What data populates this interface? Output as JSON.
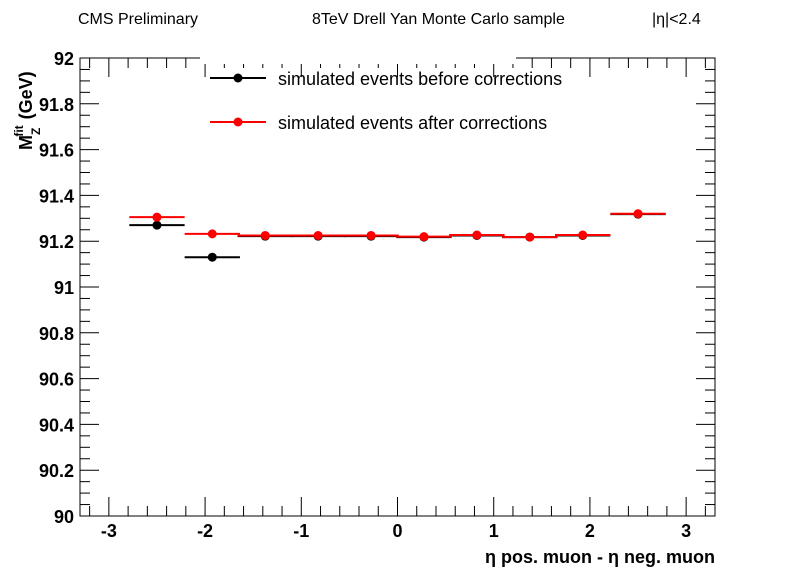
{
  "header": {
    "left": "CMS Preliminary",
    "center": "8TeV Drell Yan Monte Carlo sample",
    "right": "|η|<2.4"
  },
  "chart_data": {
    "type": "scatter",
    "title": "",
    "xlabel": "η pos. muon -  η neg. muon",
    "ylabel": {
      "main": "M",
      "superscript": "fit",
      "subscript": "Z",
      "unit": "(GeV)"
    },
    "xlim": [
      -3.3,
      3.3
    ],
    "ylim": [
      90,
      92
    ],
    "x_ticks": [
      -3,
      -2,
      -1,
      0,
      1,
      2,
      3
    ],
    "x_tick_labels": [
      "-3",
      "-2",
      "-1",
      "0",
      "1",
      "2",
      "3"
    ],
    "y_ticks": [
      90,
      90.2,
      90.4,
      90.6,
      90.8,
      91,
      91.2,
      91.4,
      91.6,
      91.8,
      92
    ],
    "y_tick_labels": [
      "90",
      "90.2",
      "90.4",
      "90.6",
      "90.8",
      "91",
      "91.2",
      "91.4",
      "91.6",
      "91.8",
      "92"
    ],
    "grid": false,
    "legend_position": "top",
    "series": [
      {
        "name": "simulated events before corrections",
        "color": "#000000",
        "bin_halfwidth": 0.2875,
        "x": [
          -2.5,
          -1.925,
          -1.375,
          -0.825,
          -0.275,
          0.275,
          0.825,
          1.375,
          1.925,
          2.5
        ],
        "y": [
          91.27,
          91.13,
          91.222,
          91.222,
          91.222,
          91.218,
          91.225,
          91.218,
          91.225,
          91.318
        ]
      },
      {
        "name": "simulated events after corrections",
        "color": "#ff0000",
        "bin_halfwidth": 0.2875,
        "x": [
          -2.5,
          -1.925,
          -1.375,
          -0.825,
          -0.275,
          0.275,
          0.825,
          1.375,
          1.925,
          2.5
        ],
        "y": [
          91.305,
          91.232,
          91.225,
          91.225,
          91.225,
          91.22,
          91.227,
          91.218,
          91.227,
          91.32
        ]
      }
    ]
  }
}
